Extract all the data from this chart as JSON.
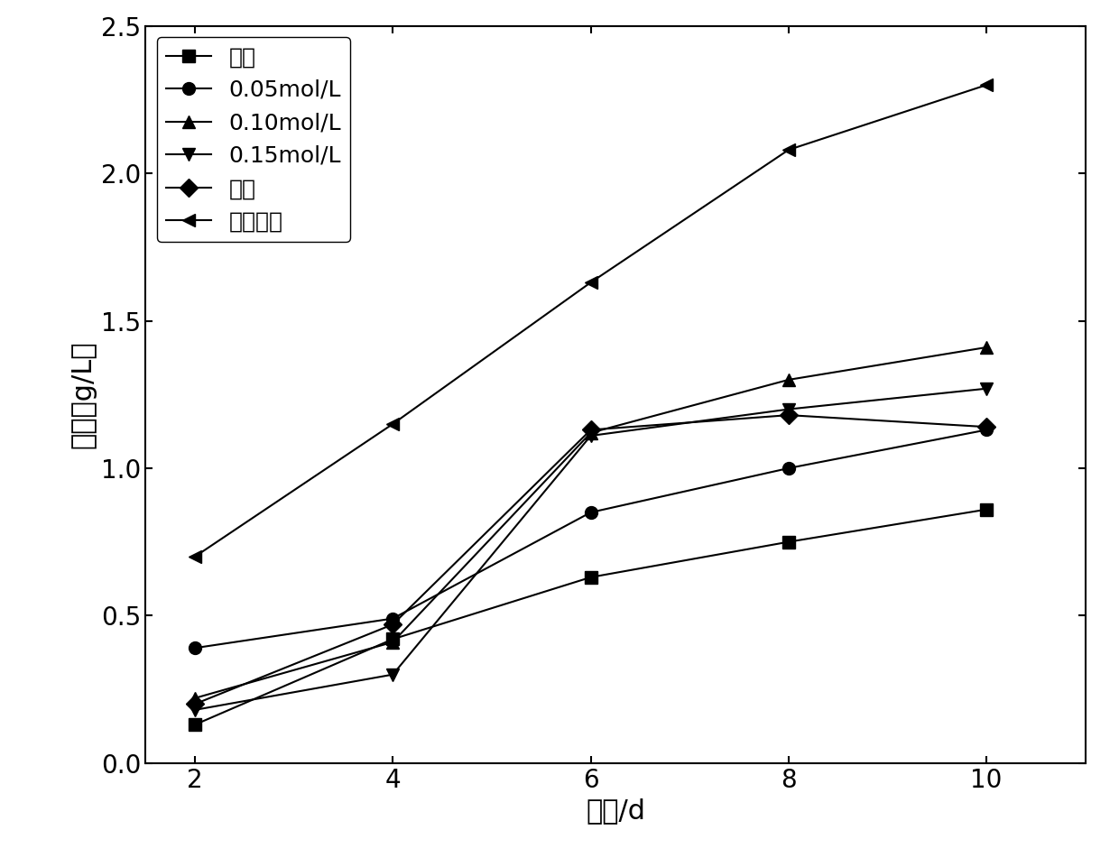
{
  "x": [
    2,
    4,
    6,
    8,
    10
  ],
  "series": [
    {
      "label": "自养",
      "marker": "s",
      "values": [
        0.13,
        0.42,
        0.63,
        0.75,
        0.86
      ]
    },
    {
      "label": "0.05mol/L",
      "marker": "o",
      "values": [
        0.39,
        0.49,
        0.85,
        1.0,
        1.13
      ]
    },
    {
      "label": "0.10mol/L",
      "marker": "^",
      "values": [
        0.22,
        0.41,
        1.12,
        1.3,
        1.41
      ]
    },
    {
      "label": "0.15mol/L",
      "marker": "v",
      "values": [
        0.18,
        0.3,
        1.11,
        1.2,
        1.27
      ]
    },
    {
      "label": "尿素",
      "marker": "D",
      "values": [
        0.2,
        0.47,
        1.13,
        1.18,
        1.14
      ]
    },
    {
      "label": "胰蛋白胨",
      "marker": "<",
      "values": [
        0.7,
        1.15,
        1.63,
        2.08,
        2.3
      ]
    }
  ],
  "xlabel": "时间/d",
  "ylabel": "干重（g/L）",
  "xlim": [
    1.5,
    11
  ],
  "ylim": [
    0.0,
    2.5
  ],
  "xticks": [
    2,
    4,
    6,
    8,
    10
  ],
  "yticks": [
    0.0,
    0.5,
    1.0,
    1.5,
    2.0,
    2.5
  ],
  "color": "black",
  "linewidth": 1.5,
  "markersize": 10,
  "legend_loc": "upper left",
  "background_color": "#ffffff"
}
